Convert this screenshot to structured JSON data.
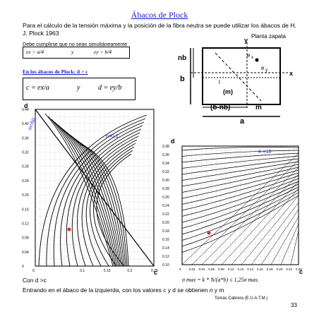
{
  "title": "Ábacos de Plock",
  "intro": "Para el cálculo de la tensión máxima y la posición de la fibra neutra se puede utilizar los ábacos de H. J. Plock 1963",
  "plan_label": "Planta zapata",
  "note": "Debe cumplirse que no sean simultáneamente",
  "conditions": {
    "a": "ex > a/4",
    "mid": "y",
    "b": "ey > b/4"
  },
  "subtitle": "En los ábacos de Plock: d > c",
  "formula": {
    "c": "c = ex/a",
    "mid": "y",
    "d": "d = ey/b"
  },
  "diagram_labels": {
    "y": "y",
    "x": "x",
    "nb": "nb",
    "b": "b",
    "bnb": "(b-nb)",
    "m_right": "m",
    "m_box": "(m)",
    "ex": "e",
    "ex_sub": "x",
    "ey": "e",
    "ey_sub": "y",
    "a": "a",
    "l": "l"
  },
  "left_chart": {
    "ylabel": "d",
    "xlabel": "c",
    "yticks": [
      "0.44",
      "0.40",
      "0.36",
      "0.32",
      "0.28",
      "0.24",
      "0.20",
      "0.16",
      "0.12",
      "0.08",
      "0.04",
      "0"
    ],
    "xticks": [
      "0",
      "0.1",
      "0.15",
      "0.2",
      "0.25"
    ],
    "curve_label": "m=50",
    "curve_label2": "n=0.1"
  },
  "right_chart": {
    "ylabel": "d",
    "xlabel": "c",
    "yticks": [
      "0.38",
      "0.36",
      "0.34",
      "0.32",
      "0.30",
      "0.28",
      "0.26",
      "0.24",
      "0.22",
      "0.20",
      "0.18",
      "0.16",
      "0.14",
      "0.12",
      "0.10"
    ],
    "xticks": [
      "0",
      "0.02",
      "0.04",
      "0.06",
      "0.08",
      "0.10",
      "0.12",
      "0.14",
      "0.16",
      "0.18",
      "0.20",
      "0.22",
      "0.25"
    ],
    "curve_label": "K =10"
  },
  "equation": "σ max = k * N/(a*b) ≤ 1,25σ max.",
  "con_label": "Con d >c",
  "footer_line": "Entrando en el ábaco de la izquierda, con los valores c y d se obtienen n y m",
  "credit": "Tomás Cabrera (E.U.A.T.M.)",
  "page_number": "33",
  "colors": {
    "title": "#1a1adc",
    "marker": "#e0302a"
  }
}
